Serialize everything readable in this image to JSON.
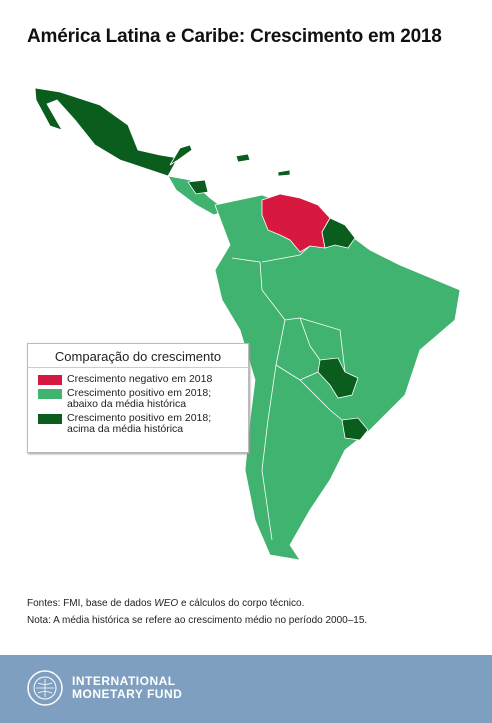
{
  "title": "América Latina e Caribe: Crescimento em 2018",
  "legend": {
    "title": "Comparação do crescimento",
    "items": [
      {
        "lines": [
          "Crescimento negativo em 2018"
        ],
        "color": "#d8193f"
      },
      {
        "lines": [
          "Crescimento positivo em 2018;",
          "abaixo da média histórica"
        ],
        "color": "#3fb36f"
      },
      {
        "lines": [
          "Crescimento positivo em 2018;",
          "acima da média histórica"
        ],
        "color": "#0b5d1e"
      }
    ]
  },
  "notes": {
    "sources": [
      "Fontes: FMI, base de dados ",
      "WEO",
      " e cálculos do corpo técnico."
    ],
    "note": "Nota: A média histórica se refere ao crescimento médio no período 2000–15."
  },
  "footer": {
    "logo_lines": [
      "INTERNATIONAL",
      "MONETARY FUND"
    ]
  }
}
